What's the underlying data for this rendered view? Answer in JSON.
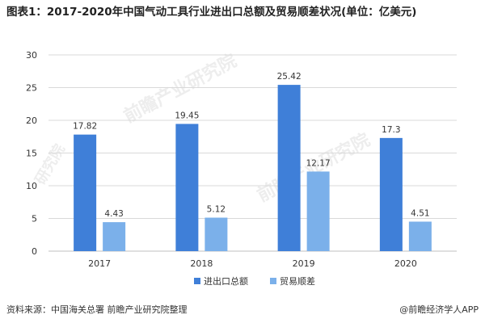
{
  "title": "图表1：2017-2020年中国气动工具行业进出口总额及贸易顺差状况(单位：亿美元)",
  "source": "资料来源：中国海关总署 前瞻产业研究院整理",
  "brand": "@前瞻经济学人APP",
  "watermarks": {
    "center": "前瞻产业研究院",
    "left": "研究院",
    "right": "前瞻产业研究院"
  },
  "colors": {
    "series1": "#3f7fd8",
    "series2": "#7bb0ea",
    "grid": "#d9d9d9",
    "text": "#333333"
  },
  "chart_data": {
    "type": "bar",
    "categories": [
      "2017",
      "2018",
      "2019",
      "2020"
    ],
    "series": [
      {
        "name": "进出口总额",
        "values": [
          17.82,
          19.45,
          25.42,
          17.3
        ],
        "labels": [
          "17.82",
          "19.45",
          "25.42",
          "17.3"
        ]
      },
      {
        "name": "贸易顺差",
        "values": [
          4.43,
          5.12,
          12.17,
          4.51
        ],
        "labels": [
          "4.43",
          "5.12",
          "12.17",
          "4.51"
        ]
      }
    ],
    "yticks": [
      0,
      5,
      10,
      15,
      20,
      25,
      30
    ],
    "ylim": [
      0,
      30
    ],
    "grid": true,
    "legend_position": "bottom"
  }
}
